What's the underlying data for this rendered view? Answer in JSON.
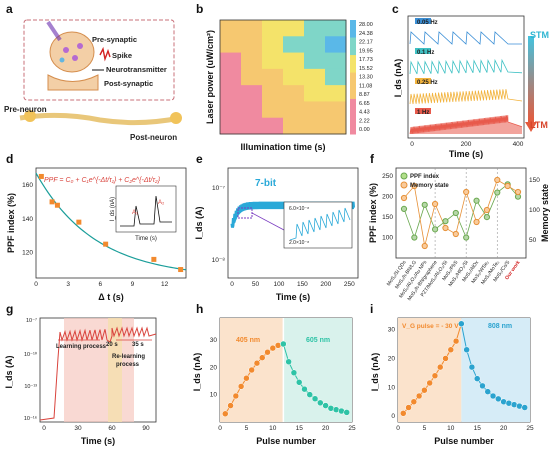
{
  "panels": {
    "a": {
      "letter": "a",
      "pre_synaptic": "Pre-synaptic",
      "spike": "Spike",
      "neurotransmitter": "Neurotransmitter",
      "post_synaptic": "Post-synaptic",
      "pre_neuron": "Pre-neuron",
      "post_neuron": "Post-neuron"
    },
    "b": {
      "letter": "b",
      "xlabel": "Illumination time (s)",
      "ylabel": "Laser power (uW/cm²)",
      "colorbar_ticks": [
        "28.00",
        "24.38",
        "22.17",
        "19.95",
        "17.73",
        "15.52",
        "13.30",
        "11.08",
        "8.87",
        "6.65",
        "4.43",
        "2.22",
        "0.00"
      ]
    },
    "c": {
      "letter": "c",
      "xlabel": "Time (s)",
      "ylabel": "I_ds (nA)",
      "stm": "STM",
      "ltm": "LTM",
      "freq_labels": [
        "0.05 Hz",
        "0.1 Hz",
        "0.25 Hz",
        "1 Hz"
      ],
      "xticks": [
        "0",
        "200",
        "400"
      ]
    },
    "d": {
      "letter": "d",
      "xlabel": "Δ t (s)",
      "ylabel": "PPF index (%)",
      "formula": "PPF = C₀ + C₁e^{-Δt/τ₁} + C₂e^{-Δt/τ₂}",
      "inset_ylabel": "I_ds (nA)",
      "inset_xlabel": "Time (s)",
      "inset_a1": "A₁",
      "inset_a2": "A₂",
      "xticks": [
        "0",
        "3",
        "6",
        "9",
        "12"
      ],
      "yticks": [
        "120",
        "140",
        "160"
      ]
    },
    "e": {
      "letter": "e",
      "xlabel": "Time (s)",
      "ylabel": "I_ds (A)",
      "bits": "7-bit",
      "xticks": [
        "0",
        "50",
        "100",
        "150",
        "200",
        "250"
      ],
      "yticks": [
        "10⁻⁸",
        "10⁻⁷"
      ],
      "inset_yticks": [
        "6.0×10⁻⁸",
        "4.0×10⁻⁸",
        "2.0×10⁻⁸"
      ]
    },
    "f": {
      "letter": "f",
      "ylabel_left": "PPF index (%)",
      "ylabel_right": "Memory state",
      "legend": [
        "PPF index",
        "Memory state"
      ],
      "categories": [
        "MoS₂/Si QDs",
        "MoS₂/h-BN/LG",
        "MoS₂/Al₂O₃/Au NPs",
        "MoS₂/h-BN/graphene",
        "PZT/MoS₂/Al₂O₃/Si",
        "MoS₂/PbS",
        "MoS₂/HfO₂/Si",
        "MoS₂/AlOx",
        "MoS₂/WSe₂",
        "MoS₂/MoTe₂",
        "MoS₂/Cs/S",
        "Our work"
      ],
      "yticks_left": [
        "100",
        "150",
        "200",
        "250"
      ],
      "yticks_right": [
        "50",
        "100",
        "150"
      ]
    },
    "g": {
      "letter": "g",
      "xlabel": "Time (s)",
      "ylabel": "I_ds (A)",
      "learning": "Learning process",
      "relearn1": "Re-learning",
      "relearn2": "process",
      "t20": "20 s",
      "t35": "35 s",
      "xticks": [
        "0",
        "30",
        "60",
        "90"
      ],
      "yticks": [
        "10⁻¹⁰",
        "10⁻¹³",
        "10⁻¹⁶",
        "10⁻⁷"
      ]
    },
    "h": {
      "letter": "h",
      "xlabel": "Pulse number",
      "ylabel": "I_ds (nA)",
      "wl1": "405 nm",
      "wl2": "605 nm",
      "xticks": [
        "0",
        "5",
        "10",
        "15",
        "20",
        "25"
      ],
      "yticks": [
        "10",
        "20",
        "30"
      ]
    },
    "i": {
      "letter": "i",
      "xlabel": "Pulse number",
      "ylabel": "I_ds (nA)",
      "gate": "V_G pulse = - 30 V",
      "wl": "808 nm",
      "xticks": [
        "0",
        "5",
        "10",
        "15",
        "20",
        "25"
      ],
      "yticks": [
        "0",
        "10",
        "20",
        "30"
      ]
    }
  },
  "chart_data": [
    {
      "type": "heatmap",
      "panel": "b",
      "xlabel": "Illumination time (s)",
      "ylabel": "Laser power (uW/cm²)",
      "zrange": [
        0,
        28
      ],
      "values": [
        [
          8,
          12,
          16,
          19,
          21,
          22
        ],
        [
          9,
          13,
          17,
          20,
          22,
          24
        ],
        [
          7,
          11,
          15,
          18,
          21,
          23
        ],
        [
          5,
          9,
          13,
          16,
          19,
          21
        ],
        [
          4,
          7,
          10,
          13,
          15,
          17
        ],
        [
          3,
          5,
          8,
          10,
          12,
          14
        ],
        [
          2,
          4,
          6,
          8,
          10,
          11
        ]
      ]
    },
    {
      "type": "scatter",
      "panel": "d",
      "xlabel": "Δ t (s)",
      "ylabel": "PPF index (%)",
      "x": [
        0.5,
        1.5,
        2,
        4,
        6.5,
        11,
        13.5
      ],
      "values": [
        165,
        150,
        148,
        138,
        125,
        116,
        110
      ],
      "xlim": [
        0,
        14
      ],
      "ylim": [
        105,
        170
      ]
    },
    {
      "type": "line",
      "panel": "f",
      "categories_count": 12,
      "series": [
        {
          "name": "PPF index",
          "values": [
            170,
            100,
            180,
            120,
            140,
            160,
            100,
            190,
            150,
            210,
            230,
            200
          ]
        },
        {
          "name": "Memory state",
          "values": [
            120,
            140,
            40,
            110,
            70,
            60,
            130,
            80,
            100,
            150,
            140,
            130
          ]
        }
      ]
    },
    {
      "type": "scatter",
      "panel": "h",
      "xlabel": "Pulse number",
      "ylabel": "I_ds (nA)",
      "series": [
        {
          "name": "405 nm",
          "x": [
            1,
            2,
            3,
            4,
            5,
            6,
            7,
            8,
            9,
            10,
            11,
            12
          ],
          "values": [
            3,
            6,
            9.5,
            13,
            16,
            19,
            21.5,
            23.5,
            25.5,
            27,
            28,
            28.5
          ]
        },
        {
          "name": "605 nm",
          "x": [
            12,
            13,
            14,
            15,
            16,
            17,
            18,
            19,
            20,
            21,
            22,
            23,
            24
          ],
          "values": [
            28.5,
            22,
            18,
            14.5,
            12,
            10,
            8.5,
            7,
            6,
            5,
            4.5,
            4,
            3.5
          ]
        }
      ],
      "xlim": [
        0,
        25
      ],
      "ylim": [
        0,
        38
      ]
    },
    {
      "type": "scatter",
      "panel": "i",
      "xlabel": "Pulse number",
      "ylabel": "I_ds (nA)",
      "series": [
        {
          "name": "V_G pulse = - 30 V",
          "x": [
            1,
            2,
            3,
            4,
            5,
            6,
            7,
            8,
            9,
            10,
            11,
            12
          ],
          "values": [
            1,
            3,
            5,
            7,
            9,
            11.5,
            14,
            17,
            20,
            23,
            26,
            32
          ]
        },
        {
          "name": "808 nm",
          "x": [
            12,
            13,
            14,
            15,
            16,
            17,
            18,
            19,
            20,
            21,
            22,
            23,
            24
          ],
          "values": [
            32,
            23,
            17,
            13,
            10.5,
            8.5,
            7,
            6,
            5,
            4.5,
            4,
            3.5,
            3
          ]
        }
      ],
      "xlim": [
        0,
        25
      ],
      "ylim": [
        -2,
        34
      ]
    }
  ]
}
